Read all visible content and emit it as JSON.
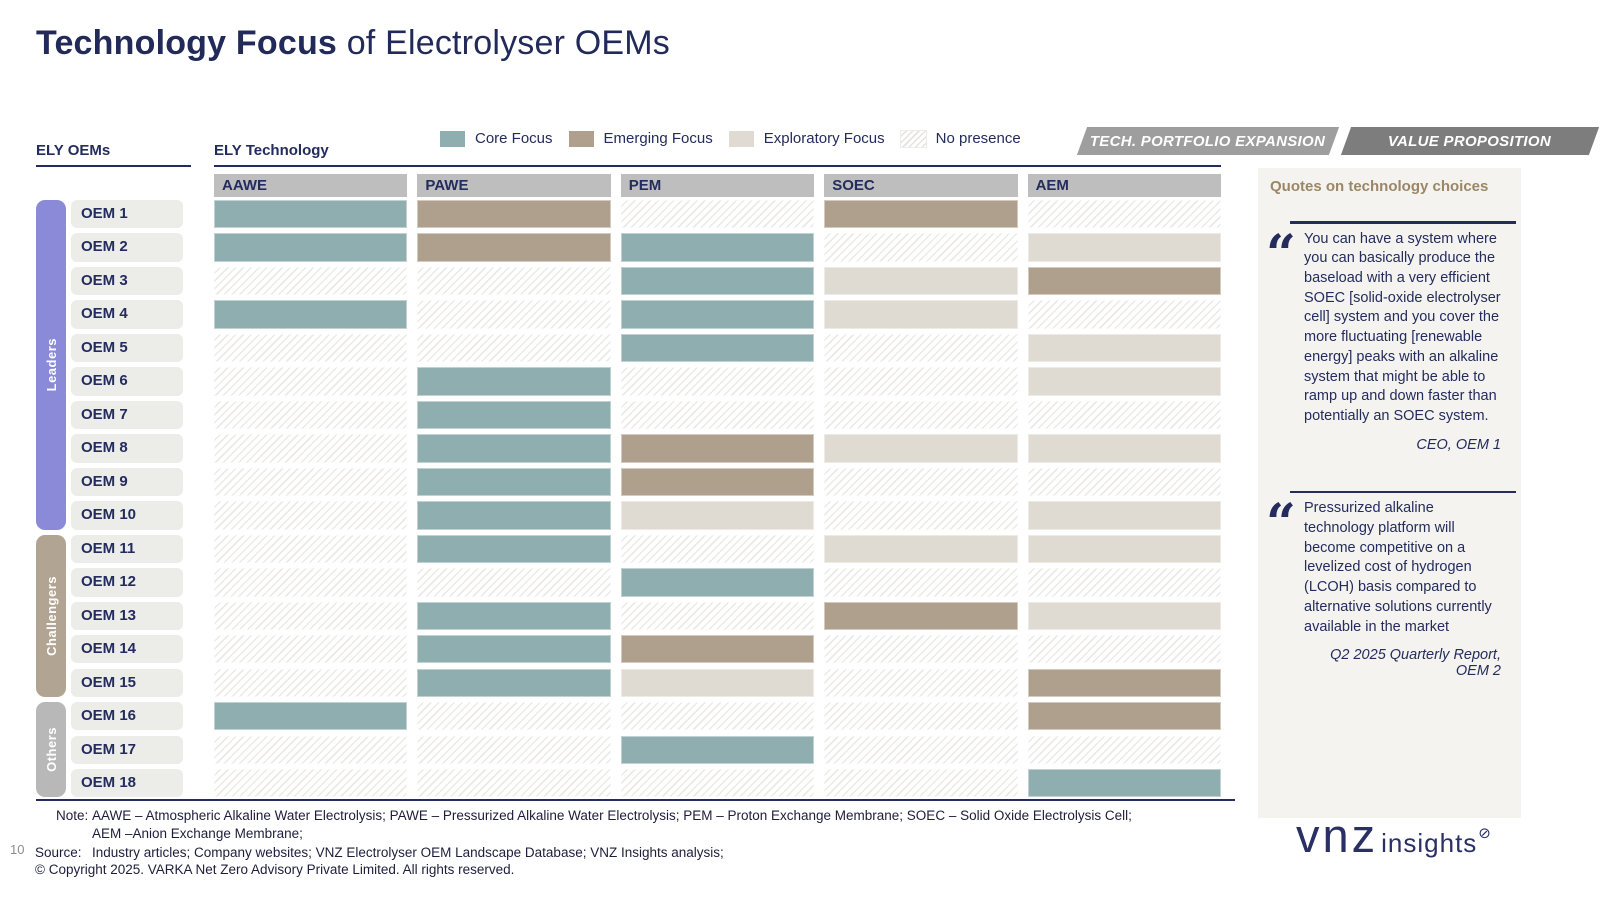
{
  "page_title": {
    "bold": "Technology Focus",
    "rest": " of Electrolyser OEMs"
  },
  "page_number": "10",
  "tabs": [
    {
      "label": "TECH. PORTFOLIO EXPANSION"
    },
    {
      "label": "VALUE PROPOSITION"
    }
  ],
  "legend": [
    {
      "key": "core",
      "label": "Core Focus"
    },
    {
      "key": "emerging",
      "label": "Emerging Focus"
    },
    {
      "key": "exploratory",
      "label": "Exploratory Focus"
    },
    {
      "key": "none",
      "label": "No presence"
    }
  ],
  "colors": {
    "core": "#8FAEB0",
    "emerging": "#AFA08D",
    "exploratory": "#DFDAD2",
    "navy": "#232C5C",
    "leaders": "#8A8AD8",
    "challengers": "#B2A492",
    "others": "#B8B8B8"
  },
  "matrix": {
    "row_axis_label": "ELY OEMs",
    "col_axis_label": "ELY Technology",
    "columns": [
      "AAWE",
      "PAWE",
      "PEM",
      "SOEC",
      "AEM"
    ],
    "groups": [
      {
        "label": "Leaders",
        "key": "leaders",
        "rows": [
          {
            "oem": "OEM 1",
            "focus": [
              "core",
              "emerging",
              "none",
              "emerging",
              "none"
            ]
          },
          {
            "oem": "OEM 2",
            "focus": [
              "core",
              "emerging",
              "core",
              "none",
              "exploratory"
            ]
          },
          {
            "oem": "OEM 3",
            "focus": [
              "none",
              "none",
              "core",
              "exploratory",
              "emerging"
            ]
          },
          {
            "oem": "OEM 4",
            "focus": [
              "core",
              "none",
              "core",
              "exploratory",
              "none"
            ]
          },
          {
            "oem": "OEM 5",
            "focus": [
              "none",
              "none",
              "core",
              "none",
              "exploratory"
            ]
          },
          {
            "oem": "OEM 6",
            "focus": [
              "none",
              "core",
              "none",
              "none",
              "exploratory"
            ]
          },
          {
            "oem": "OEM 7",
            "focus": [
              "none",
              "core",
              "none",
              "none",
              "none"
            ]
          },
          {
            "oem": "OEM 8",
            "focus": [
              "none",
              "core",
              "emerging",
              "exploratory",
              "exploratory"
            ]
          },
          {
            "oem": "OEM 9",
            "focus": [
              "none",
              "core",
              "emerging",
              "none",
              "none"
            ]
          },
          {
            "oem": "OEM 10",
            "focus": [
              "none",
              "core",
              "exploratory",
              "none",
              "exploratory"
            ]
          }
        ]
      },
      {
        "label": "Challengers",
        "key": "challengers",
        "rows": [
          {
            "oem": "OEM 11",
            "focus": [
              "none",
              "core",
              "none",
              "exploratory",
              "exploratory"
            ]
          },
          {
            "oem": "OEM 12",
            "focus": [
              "none",
              "none",
              "core",
              "none",
              "none"
            ]
          },
          {
            "oem": "OEM 13",
            "focus": [
              "none",
              "core",
              "none",
              "emerging",
              "exploratory"
            ]
          },
          {
            "oem": "OEM 14",
            "focus": [
              "none",
              "core",
              "emerging",
              "none",
              "none"
            ]
          },
          {
            "oem": "OEM 15",
            "focus": [
              "none",
              "core",
              "exploratory",
              "none",
              "emerging"
            ]
          }
        ]
      },
      {
        "label": "Others",
        "key": "others",
        "rows": [
          {
            "oem": "OEM 16",
            "focus": [
              "core",
              "none",
              "none",
              "none",
              "emerging"
            ]
          },
          {
            "oem": "OEM 17",
            "focus": [
              "none",
              "none",
              "core",
              "none",
              "none"
            ]
          },
          {
            "oem": "OEM 18",
            "focus": [
              "none",
              "none",
              "none",
              "none",
              "core"
            ]
          }
        ]
      }
    ]
  },
  "quotes_panel": {
    "header": "Quotes on technology choices",
    "quotes": [
      {
        "text": "You can have a system where you can basically produce the baseload with a very efficient SOEC [solid-oxide electrolyser cell] system and you cover the more fluctuating [renewable energy] peaks with an alkaline system that might be able to ramp up and down faster than potentially an SOEC system.",
        "attribution": "CEO, OEM 1"
      },
      {
        "text": "Pressurized alkaline technology platform will become competitive on a levelized cost of hydrogen (LCOH) basis compared to alternative solutions currently available in the market",
        "attribution": "Q2 2025 Quarterly Report, OEM 2"
      }
    ]
  },
  "footer": {
    "note_label": "Note:",
    "note_line1": "AAWE – Atmospheric Alkaline Water Electrolysis; PAWE – Pressurized Alkaline Water Electrolysis; PEM – Proton Exchange Membrane; SOEC – Solid Oxide Electrolysis Cell;",
    "note_line2": "AEM –Anion Exchange Membrane;",
    "source_label": "Source:",
    "source_text": "Industry articles; Company websites; VNZ Electrolyser OEM Landscape Database; VNZ Insights analysis;",
    "copyright": "© Copyright 2025. VARKA Net Zero Advisory Private Limited. All rights reserved."
  },
  "logo": {
    "primary": "vnz",
    "secondary": "insights",
    "mark": "⊘"
  }
}
